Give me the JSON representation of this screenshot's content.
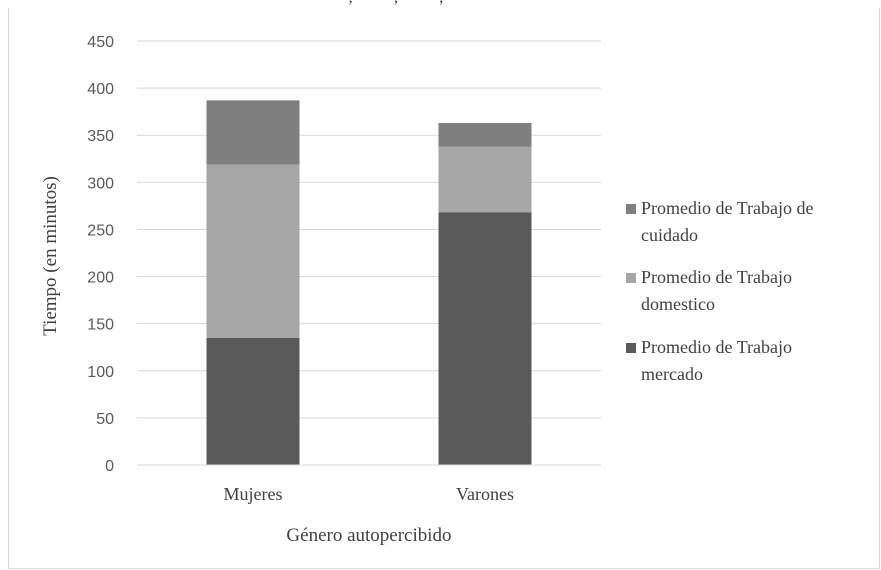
{
  "cropped_header_text": "· · , · · · · , · · · · , · ·",
  "chart_data": {
    "type": "bar",
    "stacked": true,
    "categories": [
      "Mujeres",
      "Varones"
    ],
    "series": [
      {
        "name": "Promedio de Trabajo mercado",
        "legend_lines": [
          "Promedio de Trabajo",
          "mercado"
        ],
        "values": [
          135,
          268
        ],
        "color": "#595959"
      },
      {
        "name": "Promedio de Trabajo domestico",
        "legend_lines": [
          "Promedio de Trabajo",
          "domestico"
        ],
        "values": [
          184,
          70
        ],
        "color": "#a6a6a6"
      },
      {
        "name": "Promedio de Trabajo de cuidado",
        "legend_lines": [
          "Promedio de Trabajo de",
          "cuidado"
        ],
        "values": [
          68,
          25
        ],
        "color": "#7f7f7f"
      }
    ],
    "xlabel": "Género autopercibido",
    "ylabel": "Tiempo (en minutos)",
    "ylim": [
      0,
      450
    ],
    "yticks": [
      0,
      50,
      100,
      150,
      200,
      250,
      300,
      350,
      400,
      450
    ],
    "grid": true,
    "legend_position": "right"
  }
}
